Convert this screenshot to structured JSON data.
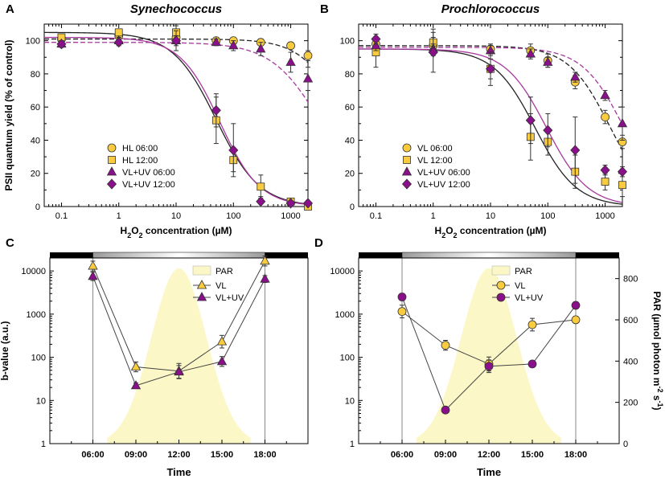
{
  "colors": {
    "yellow": "#f9cb3f",
    "purple": "#8a0f8a",
    "magenta": "#a8389f",
    "par": "#fbf7c6",
    "darkline": "#222222"
  },
  "chart_data": [
    {
      "id": "A",
      "panel_label": "A",
      "type": "scatter",
      "title": "Synechococcus",
      "xscale": "log",
      "xlim": [
        0.05,
        2000
      ],
      "ylim": [
        0,
        110
      ],
      "xticks": [
        0.1,
        1,
        10,
        100,
        1000
      ],
      "xtick_labels": [
        "0.1",
        "1",
        "10",
        "100",
        "1000"
      ],
      "yticks": [
        0,
        20,
        40,
        60,
        80,
        100
      ],
      "ytick_labels": [
        "0",
        "20",
        "40",
        "60",
        "80",
        "100"
      ],
      "ylabel": "PSII quantum yield (% of control)",
      "xlabel": {
        "pre": "H",
        "sub": "2",
        "mid": "O",
        "sub2": "2",
        "post": " concentration (µM)"
      },
      "legend_position": "lower-left",
      "series": [
        {
          "name": "HL 06:00",
          "marker": "circle",
          "color": "#f9cb3f",
          "x": [
            0.1,
            1,
            10,
            50,
            100,
            300,
            1000,
            2000
          ],
          "y": [
            101,
            103,
            102,
            100,
            100,
            99,
            97,
            91
          ],
          "err": [
            3,
            3,
            3,
            2,
            2,
            2,
            2,
            3
          ]
        },
        {
          "name": "HL 12:00",
          "marker": "square",
          "color": "#f9cb3f",
          "x": [
            0.1,
            1,
            10,
            50,
            100,
            300,
            1000,
            2000
          ],
          "y": [
            102,
            105,
            105,
            52,
            28,
            12,
            3,
            0
          ],
          "err": [
            2,
            2,
            4,
            14,
            7,
            7,
            2,
            1
          ]
        },
        {
          "name": "VL+UV 06:00",
          "marker": "triangle",
          "color": "#8a0f8a",
          "x": [
            0.1,
            1,
            10,
            50,
            100,
            300,
            1000,
            2000
          ],
          "y": [
            98,
            100,
            100,
            99,
            97,
            95,
            87,
            77
          ],
          "err": [
            2,
            2,
            6,
            2,
            3,
            4,
            6,
            7
          ]
        },
        {
          "name": "VL+UV 12:00",
          "marker": "diamond",
          "color": "#8a0f8a",
          "x": [
            0.1,
            1,
            10,
            50,
            100,
            300,
            1000,
            2000
          ],
          "y": [
            98,
            99,
            100,
            58,
            34,
            3,
            2,
            2
          ],
          "err": [
            2,
            2,
            3,
            10,
            16,
            3,
            1,
            1
          ]
        }
      ],
      "fits": [
        {
          "name": "HL 06:00 fit",
          "color": "#222222",
          "dash": true,
          "top": 101,
          "ec50": 9000,
          "hill": 1.2
        },
        {
          "name": "HL 12:00 fit",
          "color": "#222222",
          "dash": false,
          "top": 105,
          "ec50": 50,
          "hill": 1.15
        },
        {
          "name": "VL+UV 06:00 fit",
          "color": "#a8389f",
          "dash": true,
          "top": 99,
          "ec50": 3500,
          "hill": 1.0
        },
        {
          "name": "VL+UV 12:00 fit",
          "color": "#a8389f",
          "dash": false,
          "top": 102,
          "ec50": 58,
          "hill": 1.25
        }
      ]
    },
    {
      "id": "B",
      "panel_label": "B",
      "type": "scatter",
      "title": "Prochlorococcus",
      "xscale": "log",
      "xlim": [
        0.05,
        2000
      ],
      "ylim": [
        0,
        110
      ],
      "xticks": [
        0.1,
        1,
        10,
        100,
        1000
      ],
      "xtick_labels": [
        "0.1",
        "1",
        "10",
        "100",
        "1000"
      ],
      "yticks": [
        0,
        20,
        40,
        60,
        80,
        100
      ],
      "ytick_labels": [
        "0",
        "20",
        "40",
        "60",
        "80",
        "100"
      ],
      "ylabel": "",
      "xlabel": {
        "pre": "H",
        "sub": "2",
        "mid": "O",
        "sub2": "2",
        "post": " concentration (µM)"
      },
      "legend_position": "lower-left",
      "series": [
        {
          "name": "VL 06:00",
          "marker": "circle",
          "color": "#f9cb3f",
          "x": [
            0.1,
            1,
            10,
            50,
            100,
            300,
            1000,
            2000
          ],
          "y": [
            98,
            97,
            95,
            94,
            88,
            75,
            54,
            39
          ],
          "err": [
            3,
            5,
            3,
            4,
            4,
            4,
            4,
            4
          ]
        },
        {
          "name": "VL 12:00",
          "marker": "square",
          "color": "#f9cb3f",
          "x": [
            0.1,
            1,
            10,
            50,
            100,
            300,
            1000,
            2000
          ],
          "y": [
            93,
            99,
            83,
            42,
            39,
            21,
            15,
            13
          ],
          "err": [
            9,
            8,
            6,
            14,
            8,
            10,
            5,
            7
          ]
        },
        {
          "name": "VL+UV 06:00",
          "marker": "triangle",
          "color": "#8a0f8a",
          "x": [
            0.1,
            1,
            10,
            50,
            100,
            300,
            1000,
            2000
          ],
          "y": [
            97,
            95,
            94,
            92,
            87,
            78,
            67,
            50
          ],
          "err": [
            3,
            3,
            3,
            3,
            3,
            3,
            3,
            10
          ]
        },
        {
          "name": "VL+UV 12:00",
          "marker": "diamond",
          "color": "#8a0f8a",
          "x": [
            0.1,
            1,
            10,
            50,
            100,
            300,
            1000,
            2000
          ],
          "y": [
            101,
            93,
            83,
            52,
            46,
            34,
            22,
            21
          ],
          "err": [
            3,
            12,
            10,
            14,
            10,
            20,
            3,
            3
          ]
        }
      ],
      "fits": [
        {
          "name": "VL 06:00 fit",
          "color": "#222222",
          "dash": true,
          "top": 97,
          "ec50": 1200,
          "hill": 1.2
        },
        {
          "name": "VL 12:00 fit",
          "color": "#222222",
          "dash": false,
          "top": 95,
          "ec50": 60,
          "hill": 1.2
        },
        {
          "name": "VL+UV 06:00 fit",
          "color": "#a8389f",
          "dash": true,
          "top": 96,
          "ec50": 2100,
          "hill": 1.2
        },
        {
          "name": "VL+UV 12:00 fit",
          "color": "#a8389f",
          "dash": false,
          "top": 95,
          "ec50": 95,
          "hill": 1.2
        }
      ]
    },
    {
      "id": "C",
      "panel_label": "C",
      "type": "line",
      "yscale": "log",
      "ylim": [
        1,
        20000
      ],
      "xlim_hours": [
        3,
        21
      ],
      "x_hours": [
        6,
        9,
        12,
        15,
        18
      ],
      "xtick_labels": [
        "06:00",
        "09:00",
        "12:00",
        "15:00",
        "18:00"
      ],
      "yticks": [
        1,
        10,
        100,
        1000,
        10000
      ],
      "ytick_labels": [
        "1",
        "10",
        "100",
        "1000",
        "10000"
      ],
      "ylabel": "b-value (a.u.)",
      "xlabel": "Time",
      "light_bar": {
        "dark_until_hour": 6,
        "light_until_hour": 18
      },
      "par": {
        "label": "PAR",
        "peak": 850,
        "peak_hour": 12,
        "start_hour": 7,
        "end_hour": 17
      },
      "series": [
        {
          "name": "VL",
          "marker": "triangle",
          "color": "#f9cb3f",
          "y": [
            13000,
            60,
            48,
            230,
            17000
          ],
          "err_factor": [
            1.3,
            1.3,
            1.5,
            1.4,
            1.3
          ]
        },
        {
          "name": "VL+UV",
          "marker": "triangle",
          "color": "#8a0f8a",
          "y": [
            7500,
            22,
            46,
            80,
            6500
          ],
          "err_factor": [
            1.25,
            1.15,
            1.4,
            1.3,
            1.2
          ]
        }
      ]
    },
    {
      "id": "D",
      "panel_label": "D",
      "type": "line",
      "yscale": "log",
      "ylim": [
        1,
        20000
      ],
      "xlim_hours": [
        3,
        21
      ],
      "x_hours": [
        6,
        9,
        12,
        15,
        18
      ],
      "xtick_labels": [
        "06:00",
        "09:00",
        "12:00",
        "15:00",
        "18:00"
      ],
      "yticks": [
        1,
        10,
        100,
        1000,
        10000
      ],
      "ytick_labels": [
        "1",
        "10",
        "100",
        "1000",
        "10000"
      ],
      "ylabel": "",
      "xlabel": "Time",
      "right_axis": {
        "ylim": [
          0,
          900
        ],
        "yticks": [
          0,
          200,
          400,
          600,
          800
        ],
        "ytick_labels": [
          "0",
          "200",
          "400",
          "600",
          "800"
        ],
        "label_pre": "PAR (µmol photon m",
        "label_sup1": "-2",
        "label_mid": " s",
        "label_sup2": "-1",
        "label_post": ")"
      },
      "light_bar": {
        "dark_until_hour": 6,
        "light_until_hour": 18
      },
      "par": {
        "label": "PAR",
        "peak": 850,
        "peak_hour": 12,
        "start_hour": 7,
        "end_hour": 17
      },
      "series": [
        {
          "name": "VL",
          "marker": "circle",
          "color": "#f9cb3f",
          "y": [
            1150,
            190,
            70,
            570,
            740
          ],
          "err_factor": [
            1.4,
            1.3,
            1.45,
            1.4,
            1.2
          ]
        },
        {
          "name": "VL+UV",
          "marker": "circle",
          "color": "#8a0f8a",
          "y": [
            2500,
            6,
            62,
            70,
            1600
          ],
          "err_factor": [
            1.2,
            1.1,
            1.4,
            1.1,
            1.2
          ]
        }
      ]
    }
  ]
}
